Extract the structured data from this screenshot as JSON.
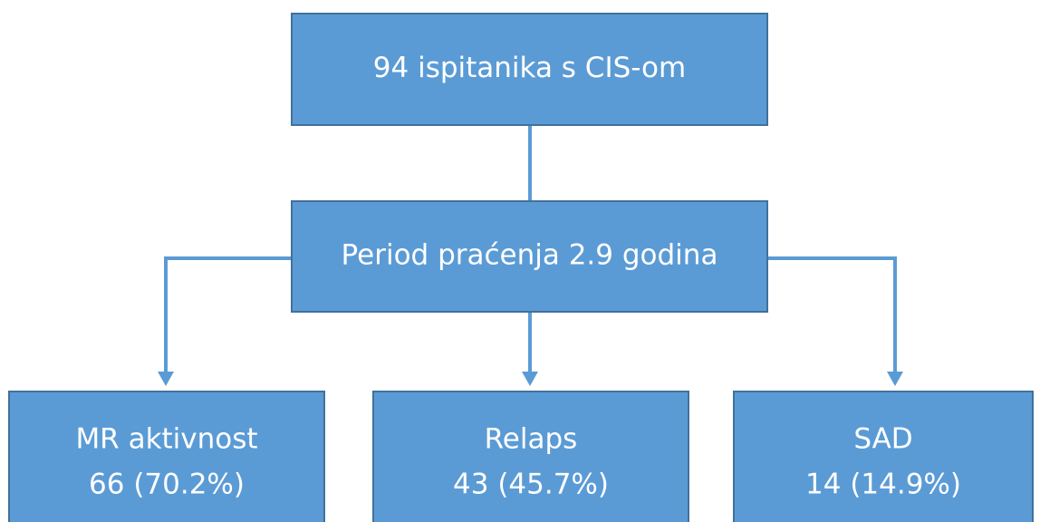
{
  "nodes": [
    {
      "lines": [
        "94 ispitanika s CIS-om"
      ]
    },
    {
      "lines": [
        "Period praćenja 2.9 godina"
      ]
    },
    {
      "lines": [
        "MR aktivnost",
        "66 (70.2%)"
      ]
    },
    {
      "lines": [
        "Relaps",
        "43 (45.7%)"
      ]
    },
    {
      "lines": [
        "SAD",
        "14 (14.9%)"
      ]
    }
  ]
}
